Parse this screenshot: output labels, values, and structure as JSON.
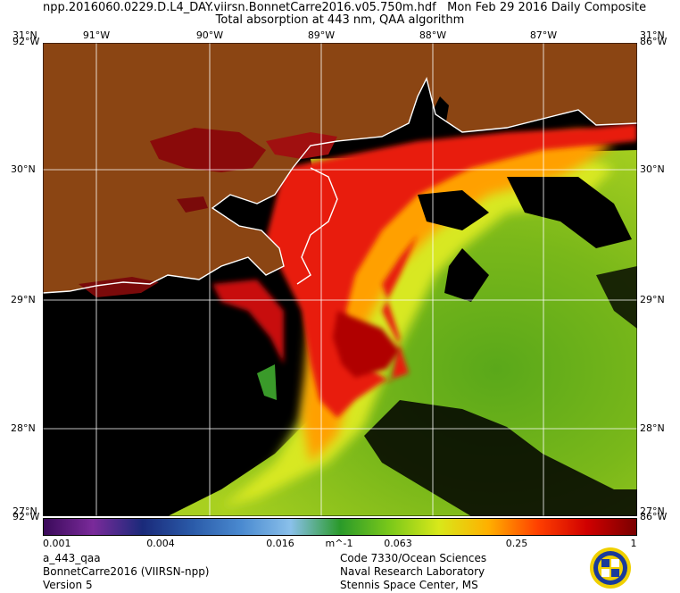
{
  "header": {
    "file_title": "npp.2016060.0229.D.L4_DAY.viirsn.BonnetCarre2016.v05.750m.hdf",
    "date_label": "Mon Feb 29 2016 Daily Composite",
    "subtitle": "Total absorption at 443 nm, QAA algorithm"
  },
  "map": {
    "longitude_labels": [
      "91°W",
      "90°W",
      "89°W",
      "88°W",
      "87°W"
    ],
    "corner_left_lon_top": "92°W",
    "corner_left_lat_top": "31°N",
    "corner_right_lon_top": "86°W",
    "corner_right_lat_top": "31°N",
    "latitude_labels_left": [
      "30°N",
      "29°N",
      "28°N"
    ],
    "latitude_labels_right": [
      "30°N",
      "29°N",
      "28°N"
    ],
    "corner_left_lon_bottom": "92°W",
    "corner_left_lat_bottom": "27°N",
    "corner_right_lon_bottom": "86°W",
    "corner_right_lat_bottom": "27°N",
    "colors": {
      "land": "#8b4513",
      "no_data": "#000000",
      "graticule": "#ffffff",
      "coastline": "#ffffff"
    }
  },
  "colorbar": {
    "tick_labels": [
      "0.001",
      "0.004",
      "0.016",
      "0.063",
      "0.25",
      "1"
    ],
    "unit": "m^-1",
    "scale": "log",
    "range": [
      0.001,
      1
    ],
    "colors": [
      "#3a0a5a",
      "#7a2a9a",
      "#1a2a7a",
      "#2a5aa8",
      "#4a8ad0",
      "#8ac0ea",
      "#2a9a2a",
      "#7ac81a",
      "#d8e81a",
      "#ffb000",
      "#ff4000",
      "#d00000",
      "#7a0000"
    ]
  },
  "footer": {
    "left": [
      "a_443_qaa",
      "BonnetCarre2016 (VIIRSN-npp)",
      "Version 5"
    ],
    "right": [
      "Code 7330/Ocean Sciences",
      "Naval Research Laboratory",
      "Stennis Space Center, MS"
    ],
    "logo_icon": "nrl-seal-icon"
  }
}
